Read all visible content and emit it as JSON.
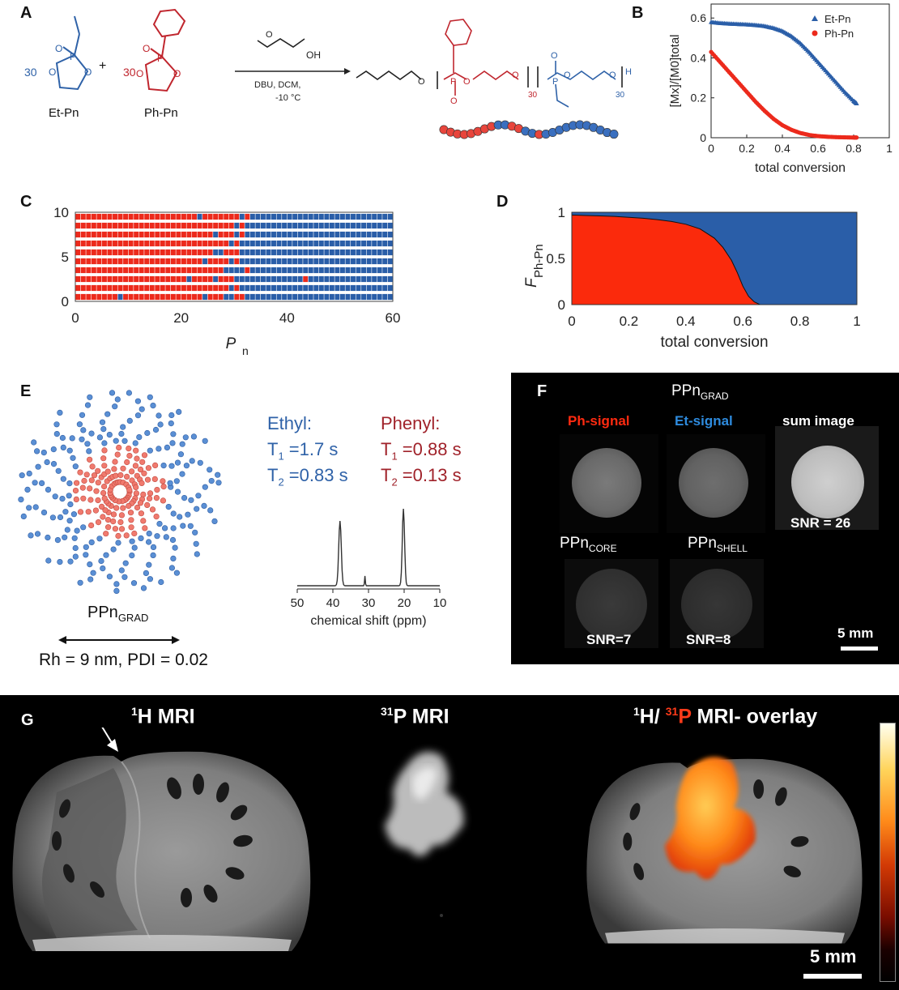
{
  "panels": {
    "A": "A",
    "B": "B",
    "C": "C",
    "D": "D",
    "E": "E",
    "F": "F",
    "G": "G"
  },
  "panelA": {
    "et_label": "Et-Pn",
    "ph_label": "Ph-Pn",
    "et_count": "30",
    "ph_count": "30",
    "plus": "+",
    "conditions_1": "DBU, DCM,",
    "conditions_2": "-10 °C",
    "oh_label": "OH",
    "sub30a": "30",
    "sub30b": "30",
    "h_label": "H",
    "colors": {
      "et": "#2f62a8",
      "ph": "#c0262e"
    }
  },
  "chart_data": [
    {
      "id": "B",
      "type": "scatter",
      "title": "",
      "xlabel": "total conversion",
      "ylabel": "[Mx]/[M0]total",
      "xlim": [
        0,
        1
      ],
      "ylim": [
        0,
        0.67
      ],
      "xticks": [
        "0",
        "0.2",
        "0.4",
        "0.6",
        "0.8",
        "1"
      ],
      "yticks": [
        "0",
        "0.2",
        "0.4",
        "0.6"
      ],
      "legend": "top-right",
      "series": [
        {
          "name": "Et-Pn",
          "color": "#2a5ea8",
          "marker": "triangle",
          "x": [
            0,
            0.05,
            0.1,
            0.15,
            0.2,
            0.25,
            0.3,
            0.35,
            0.4,
            0.45,
            0.5,
            0.55,
            0.6,
            0.65,
            0.7,
            0.75,
            0.8,
            0.82
          ],
          "y": [
            0.58,
            0.575,
            0.572,
            0.57,
            0.568,
            0.565,
            0.56,
            0.55,
            0.535,
            0.51,
            0.475,
            0.43,
            0.38,
            0.33,
            0.28,
            0.23,
            0.185,
            0.17
          ]
        },
        {
          "name": "Ph-Pn",
          "color": "#ec2a1c",
          "marker": "circle",
          "x": [
            0,
            0.05,
            0.1,
            0.15,
            0.2,
            0.25,
            0.3,
            0.35,
            0.4,
            0.45,
            0.5,
            0.55,
            0.6,
            0.65,
            0.7,
            0.75,
            0.8,
            0.82
          ],
          "y": [
            0.43,
            0.38,
            0.33,
            0.28,
            0.23,
            0.18,
            0.135,
            0.095,
            0.063,
            0.04,
            0.024,
            0.014,
            0.008,
            0.005,
            0.003,
            0.002,
            0.001,
            0.001
          ]
        }
      ]
    },
    {
      "id": "C",
      "type": "heatmap",
      "xlabel": "Pn",
      "xlim": [
        0,
        60
      ],
      "ylim": [
        0,
        10
      ],
      "xticks": [
        "0",
        "20",
        "40",
        "60"
      ],
      "yticks": [
        "0",
        "5",
        "10"
      ],
      "colors": {
        "ph": "#ec2a1c",
        "et": "#2a5ea8"
      },
      "rows": [
        "PPPPPPPPEPPPPPPPPPPPPPPPEPPPEEPPEEEEEEEEEEEEEEEEEEEEEEEEEEEE",
        "PPPPPPPPPPPPPPPPPPPPPPPPPPPPPEPEEEEEEEEEEEEEEEEEEEEEEEEEEEEE",
        "PPPPPPPPPPPPPPPPPPPPPEPPPPEPPPEEEEEEEEEEEEEPEEEEEEEEEEEEEEEE",
        "PPPPPPPPPPPPPPPPPPPPPPPPPPPPEEEEPEEEEEEEEEEEEEEEEEEEEEEEEEEE",
        "PPPPPPPPPPPPPPPPPPPPPPPPEPPPPEPEEEEEEEEEEEEEEEEEEEEEEEEEEEEE",
        "PPPPPPPPPPPPPPPPPPPPPPPPPPEEPPPEEEEEEEEEEEEEEEEEEEEEEEEEEEEE",
        "PPPPPPPPPPPPPPPPPPPPPPPPPPPPPEPEEEEEEEEEEEEEEEEEEEEEEEEEEEEE",
        "PPPPPPPPPPPPPPPPPPPPPPPPPPEPPPEPEEEEEEEEEEEEEEEEEEEEEEEEEEEE",
        "PPPPPPPPPPPPPPPPPPPPPPPPPPPPPPEPEEEEEEEEEEEEEEEEEEEEEEEEEEEE",
        "PPPPPPPPPPPPPPPPPPPPPPPEPPPPPPPEPEEEEEEEEEEEEEEEEEEEEEEEEEEE"
      ]
    },
    {
      "id": "D",
      "type": "area",
      "xlabel": "total conversion",
      "ylabel": "FPh-Pn",
      "xlim": [
        0,
        1
      ],
      "ylim": [
        0,
        1
      ],
      "xticks": [
        "0",
        "0.2",
        "0.4",
        "0.6",
        "0.8",
        "1"
      ],
      "yticks": [
        "0",
        "0.5",
        "1"
      ],
      "colors": {
        "ph": "#fb2a0c",
        "et": "#2a5ea8"
      },
      "x": [
        0,
        0.05,
        0.1,
        0.15,
        0.2,
        0.25,
        0.3,
        0.35,
        0.4,
        0.45,
        0.5,
        0.53,
        0.56,
        0.58,
        0.6,
        0.62,
        0.64,
        0.66,
        1
      ],
      "y": [
        0.97,
        0.965,
        0.96,
        0.955,
        0.945,
        0.935,
        0.92,
        0.9,
        0.87,
        0.82,
        0.72,
        0.62,
        0.48,
        0.35,
        0.2,
        0.09,
        0.03,
        0,
        0
      ]
    },
    {
      "id": "E-spectrum",
      "type": "line",
      "xlabel": "chemical shift (ppm)",
      "xlim": [
        50,
        10
      ],
      "xticks": [
        "50",
        "40",
        "30",
        "20",
        "10"
      ],
      "x": [
        50,
        40,
        39,
        38.5,
        38,
        37.5,
        37,
        36,
        31.2,
        31,
        30.8,
        22,
        21,
        20.5,
        20,
        19.5,
        19,
        18,
        10
      ],
      "y": [
        0,
        0.01,
        0.05,
        0.3,
        0.78,
        0.3,
        0.05,
        0.01,
        0,
        0.12,
        0,
        0.01,
        0.06,
        0.4,
        0.93,
        0.4,
        0.06,
        0.01,
        0
      ]
    }
  ],
  "panelE": {
    "ethyl_title": "Ethyl:",
    "ethyl_t1": "T1 =1.7 s",
    "ethyl_t2": "T2 =0.83 s",
    "phenyl_title": "Phenyl:",
    "phenyl_t1": "T1 =0.88 s",
    "phenyl_t2": "T2 =0.13 s",
    "micelle_label": "PPnGRAD",
    "rh_text": "Rh = 9 nm, PDI = 0.02",
    "colors": {
      "ethyl": "#2f62a8",
      "phenyl": "#a0222a"
    }
  },
  "panelF": {
    "ppn_grad": "PPnGRAD",
    "ph_signal": "Ph-signal",
    "et_signal": "Et-signal",
    "sum_image": "sum image",
    "snr_sum": "SNR = 26",
    "ppn_core": "PPnCORE",
    "ppn_shell": "PPnSHELL",
    "snr_core": "SNR=7",
    "snr_shell": "SNR=8",
    "scale": "5 mm",
    "colors": {
      "ph": "#ff2a10",
      "et": "#2e8bde"
    }
  },
  "panelG": {
    "h_mri": "1H MRI",
    "p_mri": "31P MRI",
    "overlay_1": "1H/ ",
    "overlay_p": "31P",
    "overlay_2": " MRI- overlay",
    "scale": "5 mm"
  }
}
